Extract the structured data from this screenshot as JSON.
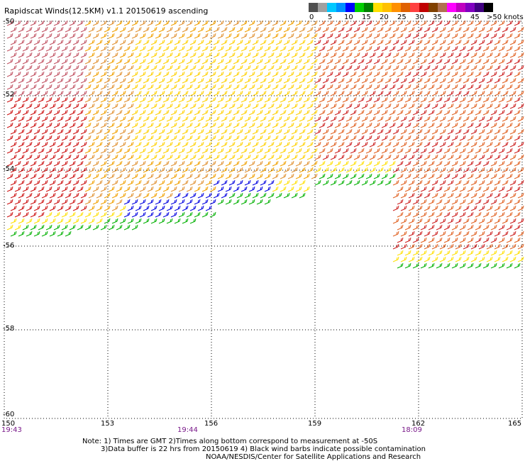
{
  "title": "Rapidscat Winds(12.5KM) v1.1 20150619 ascending",
  "legend": {
    "unit_label": ">50 knots",
    "ticks": [
      "0",
      "5",
      "10",
      "15",
      "20",
      "25",
      "30",
      "35",
      "40",
      "45"
    ],
    "colors": [
      "#505050",
      "#a0a0a0",
      "#00c8ff",
      "#0090ff",
      "#0000ff",
      "#00d000",
      "#008000",
      "#ffe000",
      "#ffc000",
      "#ff9000",
      "#e06000",
      "#ff4040",
      "#c00000",
      "#804000",
      "#b07050",
      "#ff00ff",
      "#c000c0",
      "#8000c0",
      "#400080",
      "#000000"
    ]
  },
  "map": {
    "lon_labels": [
      "150",
      "153",
      "156",
      "159",
      "162",
      "165"
    ],
    "lat_labels": [
      "-50",
      "-52",
      "-54",
      "-56",
      "-58",
      "-60"
    ],
    "time_labels": [
      "19:43",
      "19:44",
      "18:09"
    ]
  },
  "notes": {
    "line1": "Note: 1) Times are GMT 2)Times along bottom correspond to measurement at -50S",
    "line2": "3)Data buffer is 22 hrs from 20150619 4) Black wind barbs indicate possible contamination",
    "line3": "NOAA/NESDIS/Center for Satellite Applications and Research"
  }
}
